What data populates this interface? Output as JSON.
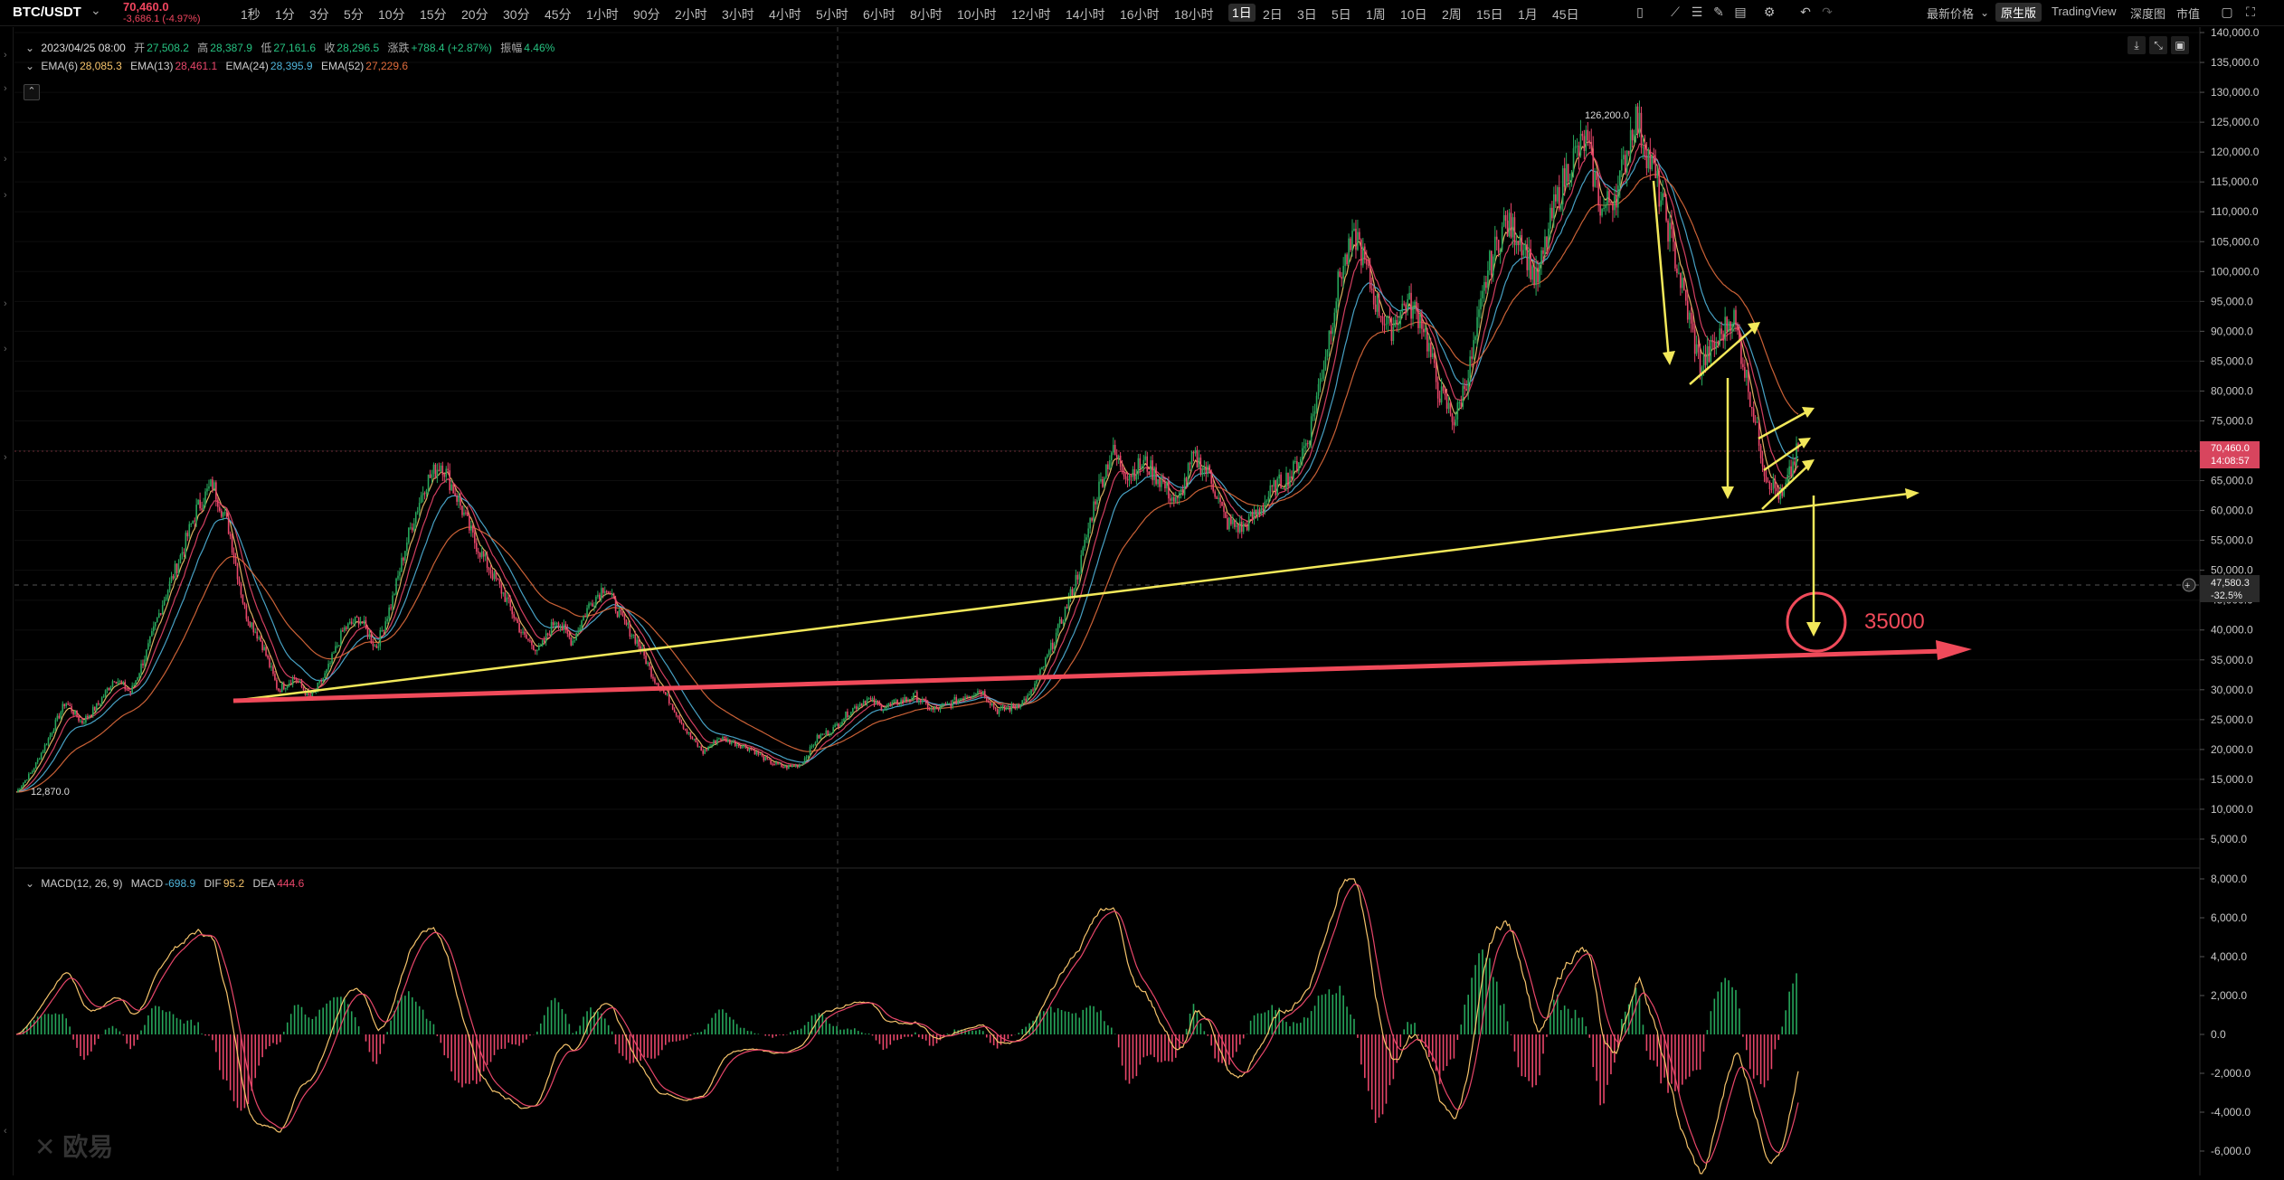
{
  "header": {
    "pair": "BTC/USDT",
    "price": "70,460.0",
    "change": "-3,686.1 (-4.97%)"
  },
  "timeframes": [
    "1秒",
    "1分",
    "3分",
    "5分",
    "10分",
    "15分",
    "20分",
    "30分",
    "45分",
    "1小时",
    "90分",
    "2小时",
    "3小时",
    "4小时",
    "5小时",
    "6小时",
    "8小时",
    "10小时",
    "12小时",
    "14小时",
    "16小时",
    "18小时",
    "1日",
    "2日",
    "3日",
    "5日",
    "1周",
    "10日",
    "2周",
    "15日",
    "1月",
    "45日"
  ],
  "active_timeframe": "1日",
  "toolbar_right": {
    "latest_price": "最新价格",
    "native": "原生版",
    "tradingview": "TradingView",
    "depth": "深度图",
    "market": "市值"
  },
  "legend": {
    "date": "2023/04/25 08:00",
    "open_label": "开",
    "open": "27,508.2",
    "high_label": "高",
    "high": "28,387.9",
    "low_label": "低",
    "low": "27,161.6",
    "close_label": "收",
    "close": "28,296.5",
    "change_label": "涨跌",
    "change": "+788.4 (+2.87%)",
    "amp_label": "振幅",
    "amp": "4.46%",
    "ema6_label": "EMA(6)",
    "ema6": "28,085.3",
    "ema13_label": "EMA(13)",
    "ema13": "28,461.1",
    "ema24_label": "EMA(24)",
    "ema24": "28,395.9",
    "ema52_label": "EMA(52)",
    "ema52": "27,229.6"
  },
  "macd_legend": {
    "label": "MACD(12, 26, 9)",
    "macd_label": "MACD",
    "macd": "-698.9",
    "dif_label": "DIF",
    "dif": "95.2",
    "dea_label": "DEA",
    "dea": "444.6"
  },
  "price_axis": [
    "140,000.0",
    "135,000.0",
    "130,000.0",
    "125,000.0",
    "120,000.0",
    "115,000.0",
    "110,000.0",
    "105,000.0",
    "100,000.0",
    "95,000.0",
    "90,000.0",
    "85,000.0",
    "80,000.0",
    "75,000.0",
    "70,000.0",
    "65,000.0",
    "60,000.0",
    "55,000.0",
    "50,000.0",
    "45,000.0",
    "40,000.0",
    "35,000.0",
    "30,000.0",
    "25,000.0",
    "20,000.0",
    "15,000.0",
    "10,000.0",
    "5,000.0"
  ],
  "macd_axis": [
    "8,000.0",
    "6,000.0",
    "4,000.0",
    "2,000.0",
    "0.0",
    "-2,000.0",
    "-4,000.0",
    "-6,000.0"
  ],
  "price_tag": {
    "price": "70,460.0",
    "countdown": "14:08:57"
  },
  "crosshair_tag": {
    "price": "47,580.3",
    "pct": "-32.5%"
  },
  "annotations": {
    "high_mark": "126,200.0",
    "low_mark": "12,870.0",
    "target": "35000"
  },
  "colors": {
    "up": "#26a65b",
    "down": "#e8466a",
    "ema6": "#f5c36b",
    "ema13": "#e8466a",
    "ema24": "#4fb3d9",
    "ema52": "#e06c3c",
    "drawing_yellow": "#f2e85a",
    "drawing_red": "#f04a5a"
  },
  "chart_data": {
    "type": "line",
    "title": "",
    "series": [
      {
        "name": "",
        "values": [
          12870,
          16500,
          22000,
          28000,
          24500,
          27500,
          32000,
          29500,
          36500,
          45000,
          52000,
          60000,
          64500,
          57000,
          43000,
          38000,
          30000,
          32000,
          28500,
          33000,
          40000,
          42000,
          37000,
          45000,
          56000,
          64500,
          68000,
          62000,
          55000,
          50000,
          45000,
          39000,
          36500,
          42000,
          38000,
          44000,
          47500,
          42000,
          38000,
          32000,
          28000,
          23000,
          19500,
          22000,
          21000,
          20000,
          18000,
          17000,
          17500,
          22000,
          23500,
          26500,
          28500,
          27000,
          28000,
          29000,
          26500,
          27500,
          29000,
          30000,
          26500,
          27000,
          29000,
          35000,
          42000,
          50000,
          62000,
          70000,
          66000,
          68000,
          65000,
          61000,
          69000,
          66000,
          58000,
          57000,
          60000,
          64000,
          66000,
          72000,
          85000,
          100000,
          106000,
          96000,
          90000,
          95000,
          92000,
          80000,
          75000,
          85000,
          100000,
          108000,
          106000,
          98000,
          110000,
          118000,
          122000,
          110000,
          114000,
          126200,
          118000,
          108000,
          96000,
          84000,
          88000,
          93000,
          80000,
          66000,
          62000,
          70460
        ]
      }
    ],
    "y_axis_range": [
      0,
      140000
    ],
    "macd_axis_range": [
      -6000,
      8000
    ],
    "marked_high": 126200,
    "marked_low": 12870,
    "target_level": 35000
  }
}
